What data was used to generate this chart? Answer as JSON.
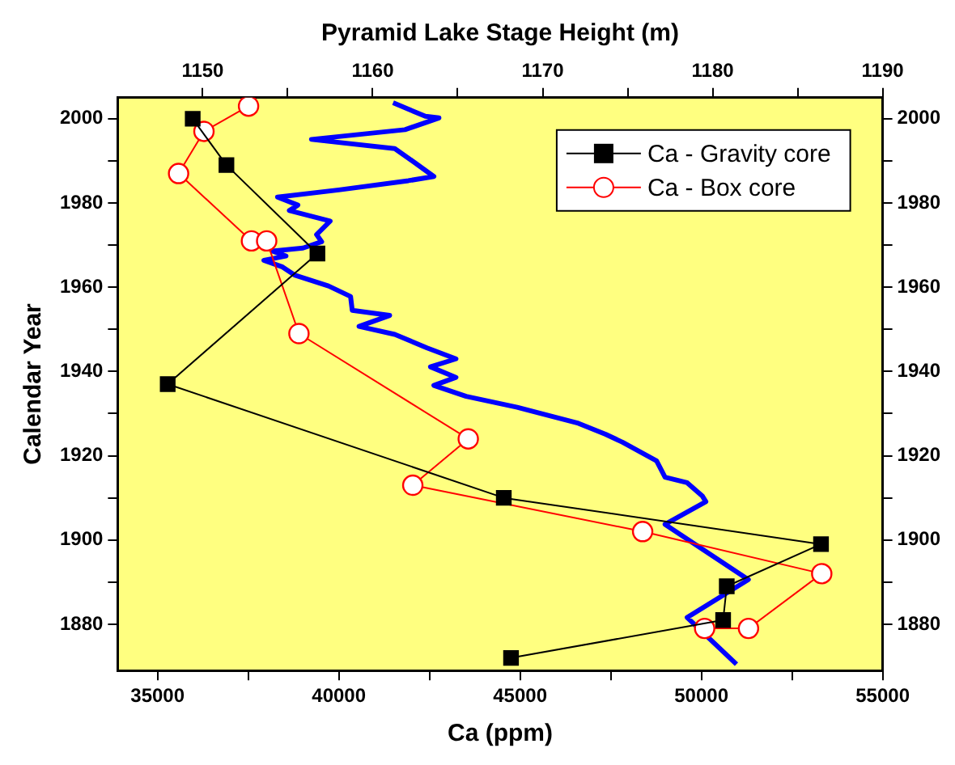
{
  "chart_data": {
    "type": "line",
    "xlabel": "Ca (ppm)",
    "x2label": "Pyramid Lake Stage Height (m)",
    "ylabel": "Calendar Year",
    "xlim": [
      33900,
      55000
    ],
    "xticks": [
      35000,
      {
        "value": 37500,
        "label": null
      },
      40000,
      {
        "value": 42500,
        "label": null
      },
      45000,
      {
        "value": 47500,
        "label": null
      },
      50000,
      {
        "value": 52500,
        "label": null
      },
      55000
    ],
    "x2lim": [
      1145,
      1190
    ],
    "x2ticks": [
      1150,
      {
        "value": 1155,
        "label": null
      },
      1160,
      {
        "value": 1165,
        "label": null
      },
      1170,
      {
        "value": 1175,
        "label": null
      },
      1180,
      {
        "value": 1185,
        "label": null
      },
      1190
    ],
    "ylim": [
      1869,
      2005
    ],
    "yticks": [
      1880,
      {
        "value": 1890,
        "label": null
      },
      1900,
      {
        "value": 1910,
        "label": null
      },
      1920,
      {
        "value": 1930,
        "label": null
      },
      1940,
      {
        "value": 1950,
        "label": null
      },
      1960,
      {
        "value": 1970,
        "label": null
      },
      1980,
      {
        "value": 1990,
        "label": null
      },
      2000
    ],
    "y2lim": [
      1869,
      2005
    ],
    "y2ticks": [
      1880,
      {
        "value": 1890,
        "label": null
      },
      1900,
      {
        "value": 1910,
        "label": null
      },
      1920,
      {
        "value": 1930,
        "label": null
      },
      1940,
      {
        "value": 1950,
        "label": null
      },
      1960,
      {
        "value": 1970,
        "label": null
      },
      1980,
      {
        "value": 1990,
        "label": null
      },
      2000
    ],
    "grid": false,
    "legend": "top right",
    "series": [
      {
        "type": "line",
        "axis": "x2",
        "color": "#0000ff",
        "marker": "none",
        "x": [
          1161.2,
          1163.1,
          1163.9,
          1161.9,
          1156.4,
          1161.3,
          1162.4,
          1163.6,
          1162.1,
          1158.0,
          1154.4,
          1155.6,
          1155.1,
          1157.5,
          1156.7,
          1157.0,
          1155.9,
          1154.1,
          1154.9,
          1153.6,
          1154.7,
          1155.4,
          1157.4,
          1158.7,
          1158.8,
          1161.0,
          1159.2,
          1161.3,
          1163.2,
          1164.9,
          1163.4,
          1164.9,
          1163.6,
          1165.5,
          1168.5,
          1172.1,
          1173.7,
          1174.7,
          1176.7,
          1177.2,
          1178.5,
          1179.4,
          1179.6,
          1177.2,
          1182.1,
          1178.5,
          1181.4
        ],
        "values": [
          2003.8,
          2000.6,
          2000.2,
          1997.4,
          1995.1,
          1992.9,
          1989.8,
          1986.3,
          1985.3,
          1983.1,
          1981.4,
          1979.5,
          1978.2,
          1975.7,
          1972.5,
          1970.8,
          1969.3,
          1968.6,
          1967.4,
          1966.4,
          1964.8,
          1962.9,
          1960.3,
          1957.8,
          1954.5,
          1953.3,
          1950.7,
          1948.8,
          1945.6,
          1943.0,
          1941.1,
          1938.6,
          1936.7,
          1934.1,
          1931.5,
          1927.7,
          1925.1,
          1923.2,
          1918.8,
          1914.9,
          1913.6,
          1910.4,
          1909.1,
          1903.7,
          1890.6,
          1881.6,
          1870.5
        ]
      },
      {
        "type": "line",
        "name": "Ca - Gravity core",
        "color": "#000000",
        "marker": "square",
        "x": [
          35970,
          36900,
          39410,
          35280,
          44550,
          53300,
          50700,
          50600,
          44750
        ],
        "values": [
          2000,
          1989,
          1968,
          1937,
          1910,
          1899,
          1889,
          1881,
          1872
        ]
      },
      {
        "type": "line",
        "name": "Ca - Box core",
        "color": "#ff0000",
        "marker": "circle",
        "x": [
          37510,
          36280,
          35580,
          37590,
          38010,
          38900,
          43570,
          42040,
          48380,
          53320,
          51300,
          50090
        ],
        "values": [
          2003,
          1997,
          1987,
          1971,
          1971,
          1949,
          1924,
          1913,
          1902,
          1892,
          1879,
          1879
        ]
      }
    ]
  }
}
